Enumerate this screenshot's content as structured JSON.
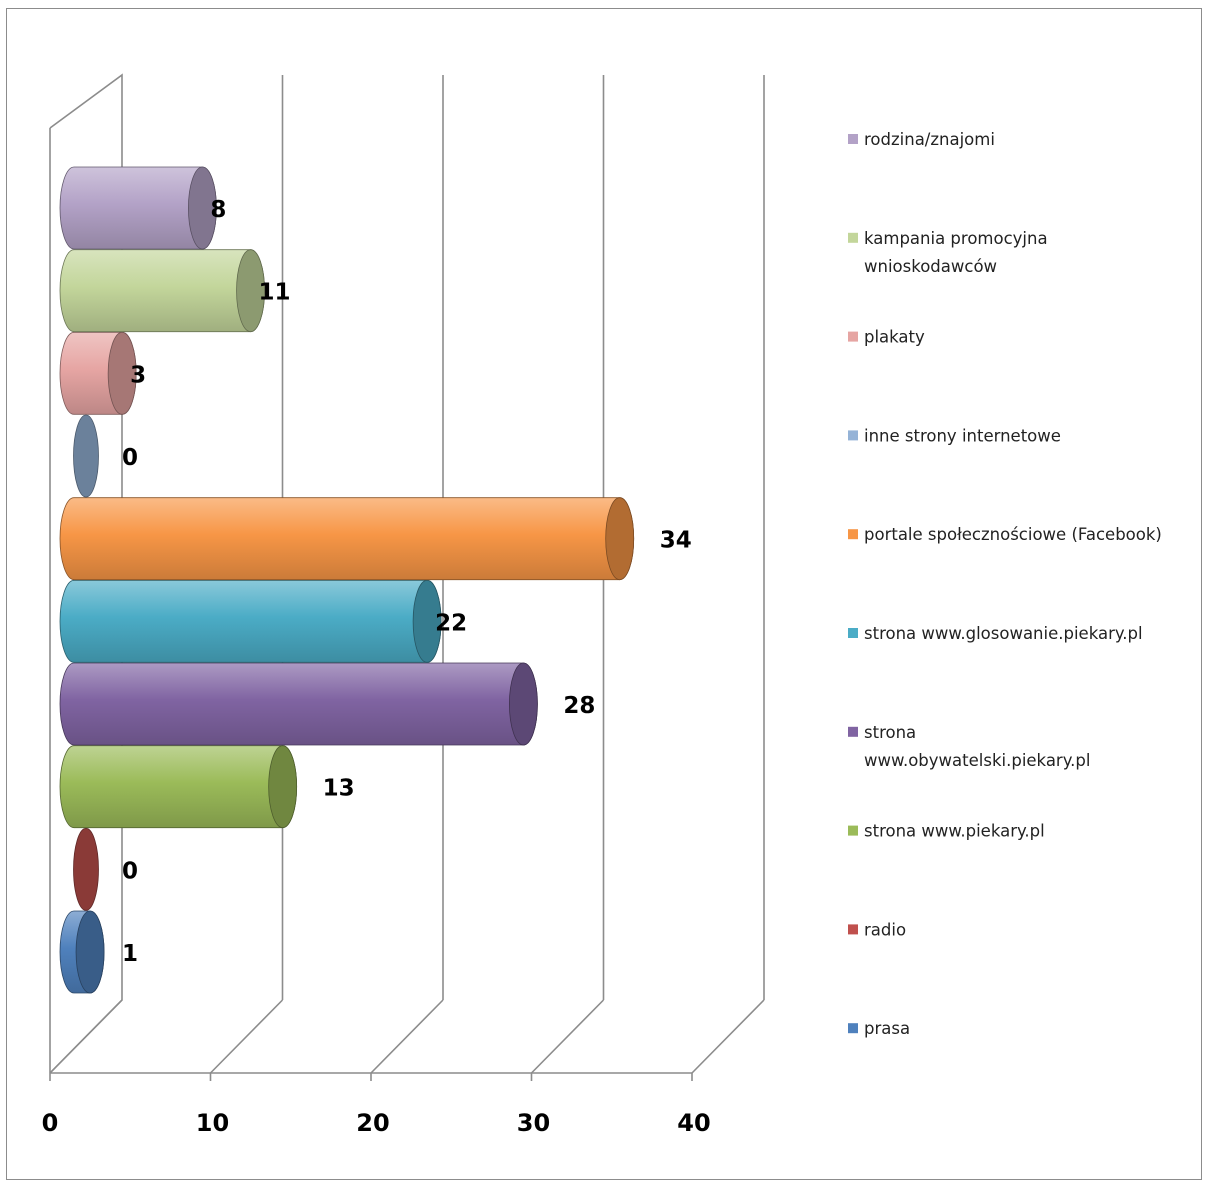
{
  "chart_data": {
    "type": "bar",
    "orientation": "horizontal",
    "style": "3d-cylinder",
    "title": "",
    "xlabel": "",
    "ylabel": "",
    "xlim": [
      0,
      40
    ],
    "x_ticks": [
      "0",
      "10",
      "20",
      "30",
      "40"
    ],
    "grid": true,
    "legend_position": "right",
    "series": [
      {
        "name": "prasa",
        "value": 1,
        "color": "#4f81bd"
      },
      {
        "name": "radio",
        "value": 0,
        "color": "#c0504d"
      },
      {
        "name": "strona www.piekary.pl",
        "value": 13,
        "color": "#9bbb59"
      },
      {
        "name": "strona www.obywatelski.piekary.pl",
        "value": 28,
        "color": "#8064a2"
      },
      {
        "name": "strona www.glosowanie.piekary.pl",
        "value": 22,
        "color": "#4bacc6"
      },
      {
        "name": "portale społecznościowe (Facebook)",
        "value": 34,
        "color": "#f79646"
      },
      {
        "name": "inne strony internetowe",
        "value": 0,
        "color": "#95b3d7"
      },
      {
        "name": "plakaty",
        "value": 3,
        "color": "#e6a5a3"
      },
      {
        "name": "kampania  promocyjna wnioskodawców",
        "value": 11,
        "color": "#c3d69b"
      },
      {
        "name": "rodzina/znajomi",
        "value": 8,
        "color": "#b3a2c7"
      }
    ],
    "legend_order": [
      "rodzina/znajomi",
      "kampania  promocyjna wnioskodawców",
      "plakaty",
      "inne strony internetowe",
      "portale społecznościowe (Facebook)",
      "strona www.glosowanie.piekary.pl",
      "strona www.obywatelski.piekary.pl",
      "strona www.piekary.pl",
      "radio",
      "prasa"
    ]
  }
}
